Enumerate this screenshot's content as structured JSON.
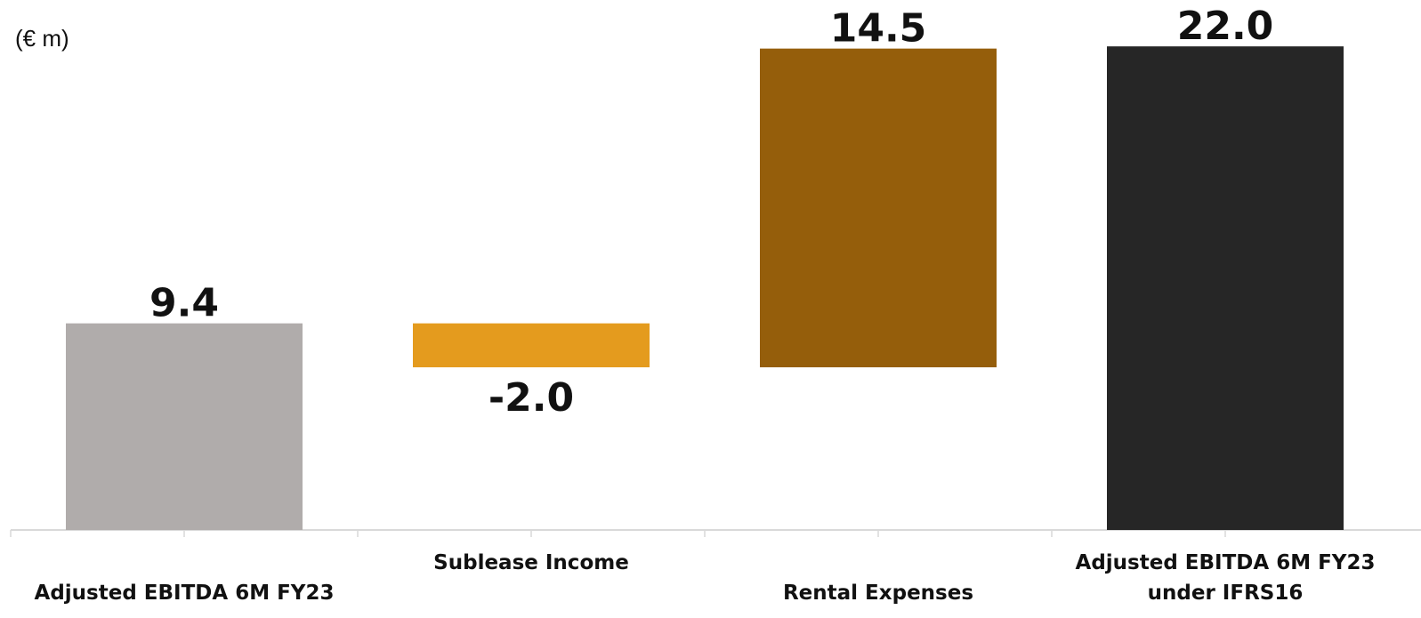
{
  "chart_data": {
    "type": "bar",
    "subtype": "waterfall",
    "unit_label": "(€ m)",
    "categories": [
      [
        "Adjusted EBITDA 6M FY23"
      ],
      [
        "Sublease Income"
      ],
      [
        "Rental Expenses"
      ],
      [
        "Adjusted EBITDA 6M FY23",
        "under IFRS16"
      ]
    ],
    "values": [
      9.4,
      -2.0,
      14.5,
      22.0
    ],
    "value_labels": [
      "9.4",
      "-2.0",
      "14.5",
      "22.0"
    ],
    "bar_kind": [
      "total",
      "delta",
      "delta",
      "total"
    ],
    "colors": [
      "#B0ACAB",
      "#E49B1E",
      "#955E0B",
      "#262626"
    ],
    "grid": false,
    "legend": "none"
  }
}
